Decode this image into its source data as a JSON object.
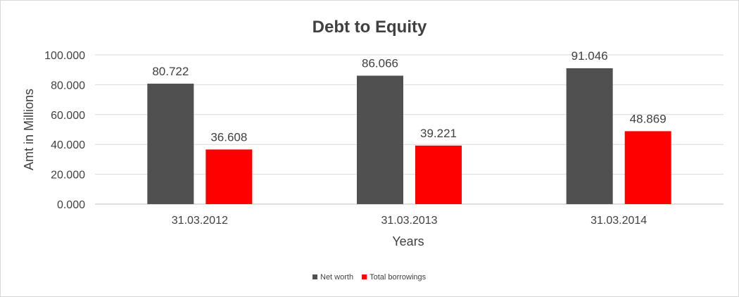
{
  "chart_data": {
    "type": "bar",
    "title": "Debt to Equity",
    "xlabel": "Years",
    "ylabel": "Amt in Millions",
    "categories": [
      "31.03.2012",
      "31.03.2013",
      "31.03.2014"
    ],
    "series": [
      {
        "name": "Net worth",
        "values": [
          80.722,
          86.066,
          91.046
        ],
        "color": "#505050"
      },
      {
        "name": "Total borrowings",
        "values": [
          36.608,
          39.221,
          48.869
        ],
        "color": "#ff0000"
      }
    ],
    "ylim": [
      0,
      100
    ],
    "yticks": [
      "0.000",
      "20.000",
      "40.000",
      "60.000",
      "80.000",
      "100.000"
    ],
    "data_labels": [
      [
        "80.722",
        "86.066",
        "91.046"
      ],
      [
        "36.608",
        "39.221",
        "48.869"
      ]
    ],
    "grid": true,
    "legend_position": "bottom"
  }
}
